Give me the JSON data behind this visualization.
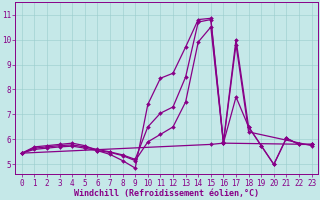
{
  "xlabel": "Windchill (Refroidissement éolien,°C)",
  "bg_color": "#c5e8e8",
  "line_color": "#880088",
  "grid_color": "#99cccc",
  "xlim": [
    -0.5,
    23.5
  ],
  "ylim": [
    4.6,
    11.5
  ],
  "xticks": [
    0,
    1,
    2,
    3,
    4,
    5,
    6,
    7,
    8,
    9,
    10,
    11,
    12,
    13,
    14,
    15,
    16,
    17,
    18,
    19,
    20,
    21,
    22,
    23
  ],
  "yticks": [
    5,
    6,
    7,
    8,
    9,
    10,
    11
  ],
  "lines": [
    {
      "x": [
        0,
        1,
        2,
        3,
        4,
        5,
        6,
        7,
        8,
        9,
        10,
        11,
        12,
        13,
        14,
        15,
        16,
        17,
        18,
        19,
        20,
        21,
        22,
        23
      ],
      "y": [
        5.45,
        5.7,
        5.75,
        5.8,
        5.85,
        5.75,
        5.55,
        5.4,
        5.15,
        4.85,
        7.4,
        8.45,
        8.65,
        9.7,
        10.8,
        10.85,
        5.9,
        10.0,
        6.5,
        5.75,
        5.0,
        6.05,
        5.8,
        5.8
      ],
      "lw": 0.9
    },
    {
      "x": [
        0,
        1,
        2,
        3,
        4,
        5,
        6,
        7,
        8,
        9,
        10,
        11,
        12,
        13,
        14,
        15,
        16,
        23
      ],
      "y": [
        5.45,
        5.65,
        5.7,
        5.75,
        5.78,
        5.7,
        5.6,
        5.5,
        5.38,
        5.2,
        6.5,
        7.05,
        7.3,
        8.5,
        10.7,
        10.8,
        5.85,
        5.8
      ],
      "lw": 0.9
    },
    {
      "x": [
        0,
        1,
        2,
        3,
        4,
        5,
        6,
        7,
        8,
        9,
        10,
        11,
        12,
        13,
        14,
        15,
        16,
        17,
        18,
        23
      ],
      "y": [
        5.45,
        5.6,
        5.65,
        5.7,
        5.73,
        5.65,
        5.55,
        5.48,
        5.35,
        5.15,
        5.9,
        6.2,
        6.5,
        7.5,
        9.9,
        10.5,
        5.85,
        9.8,
        6.3,
        5.75
      ],
      "lw": 0.9
    },
    {
      "x": [
        0,
        15,
        16,
        17,
        18,
        19,
        20,
        21,
        22,
        23
      ],
      "y": [
        5.45,
        5.8,
        5.85,
        7.7,
        6.5,
        5.75,
        5.0,
        6.05,
        5.8,
        5.8
      ],
      "lw": 0.9
    }
  ],
  "marker": "D",
  "markersize": 2.0,
  "tick_fontsize": 5.5,
  "xlabel_fontsize": 6.0
}
